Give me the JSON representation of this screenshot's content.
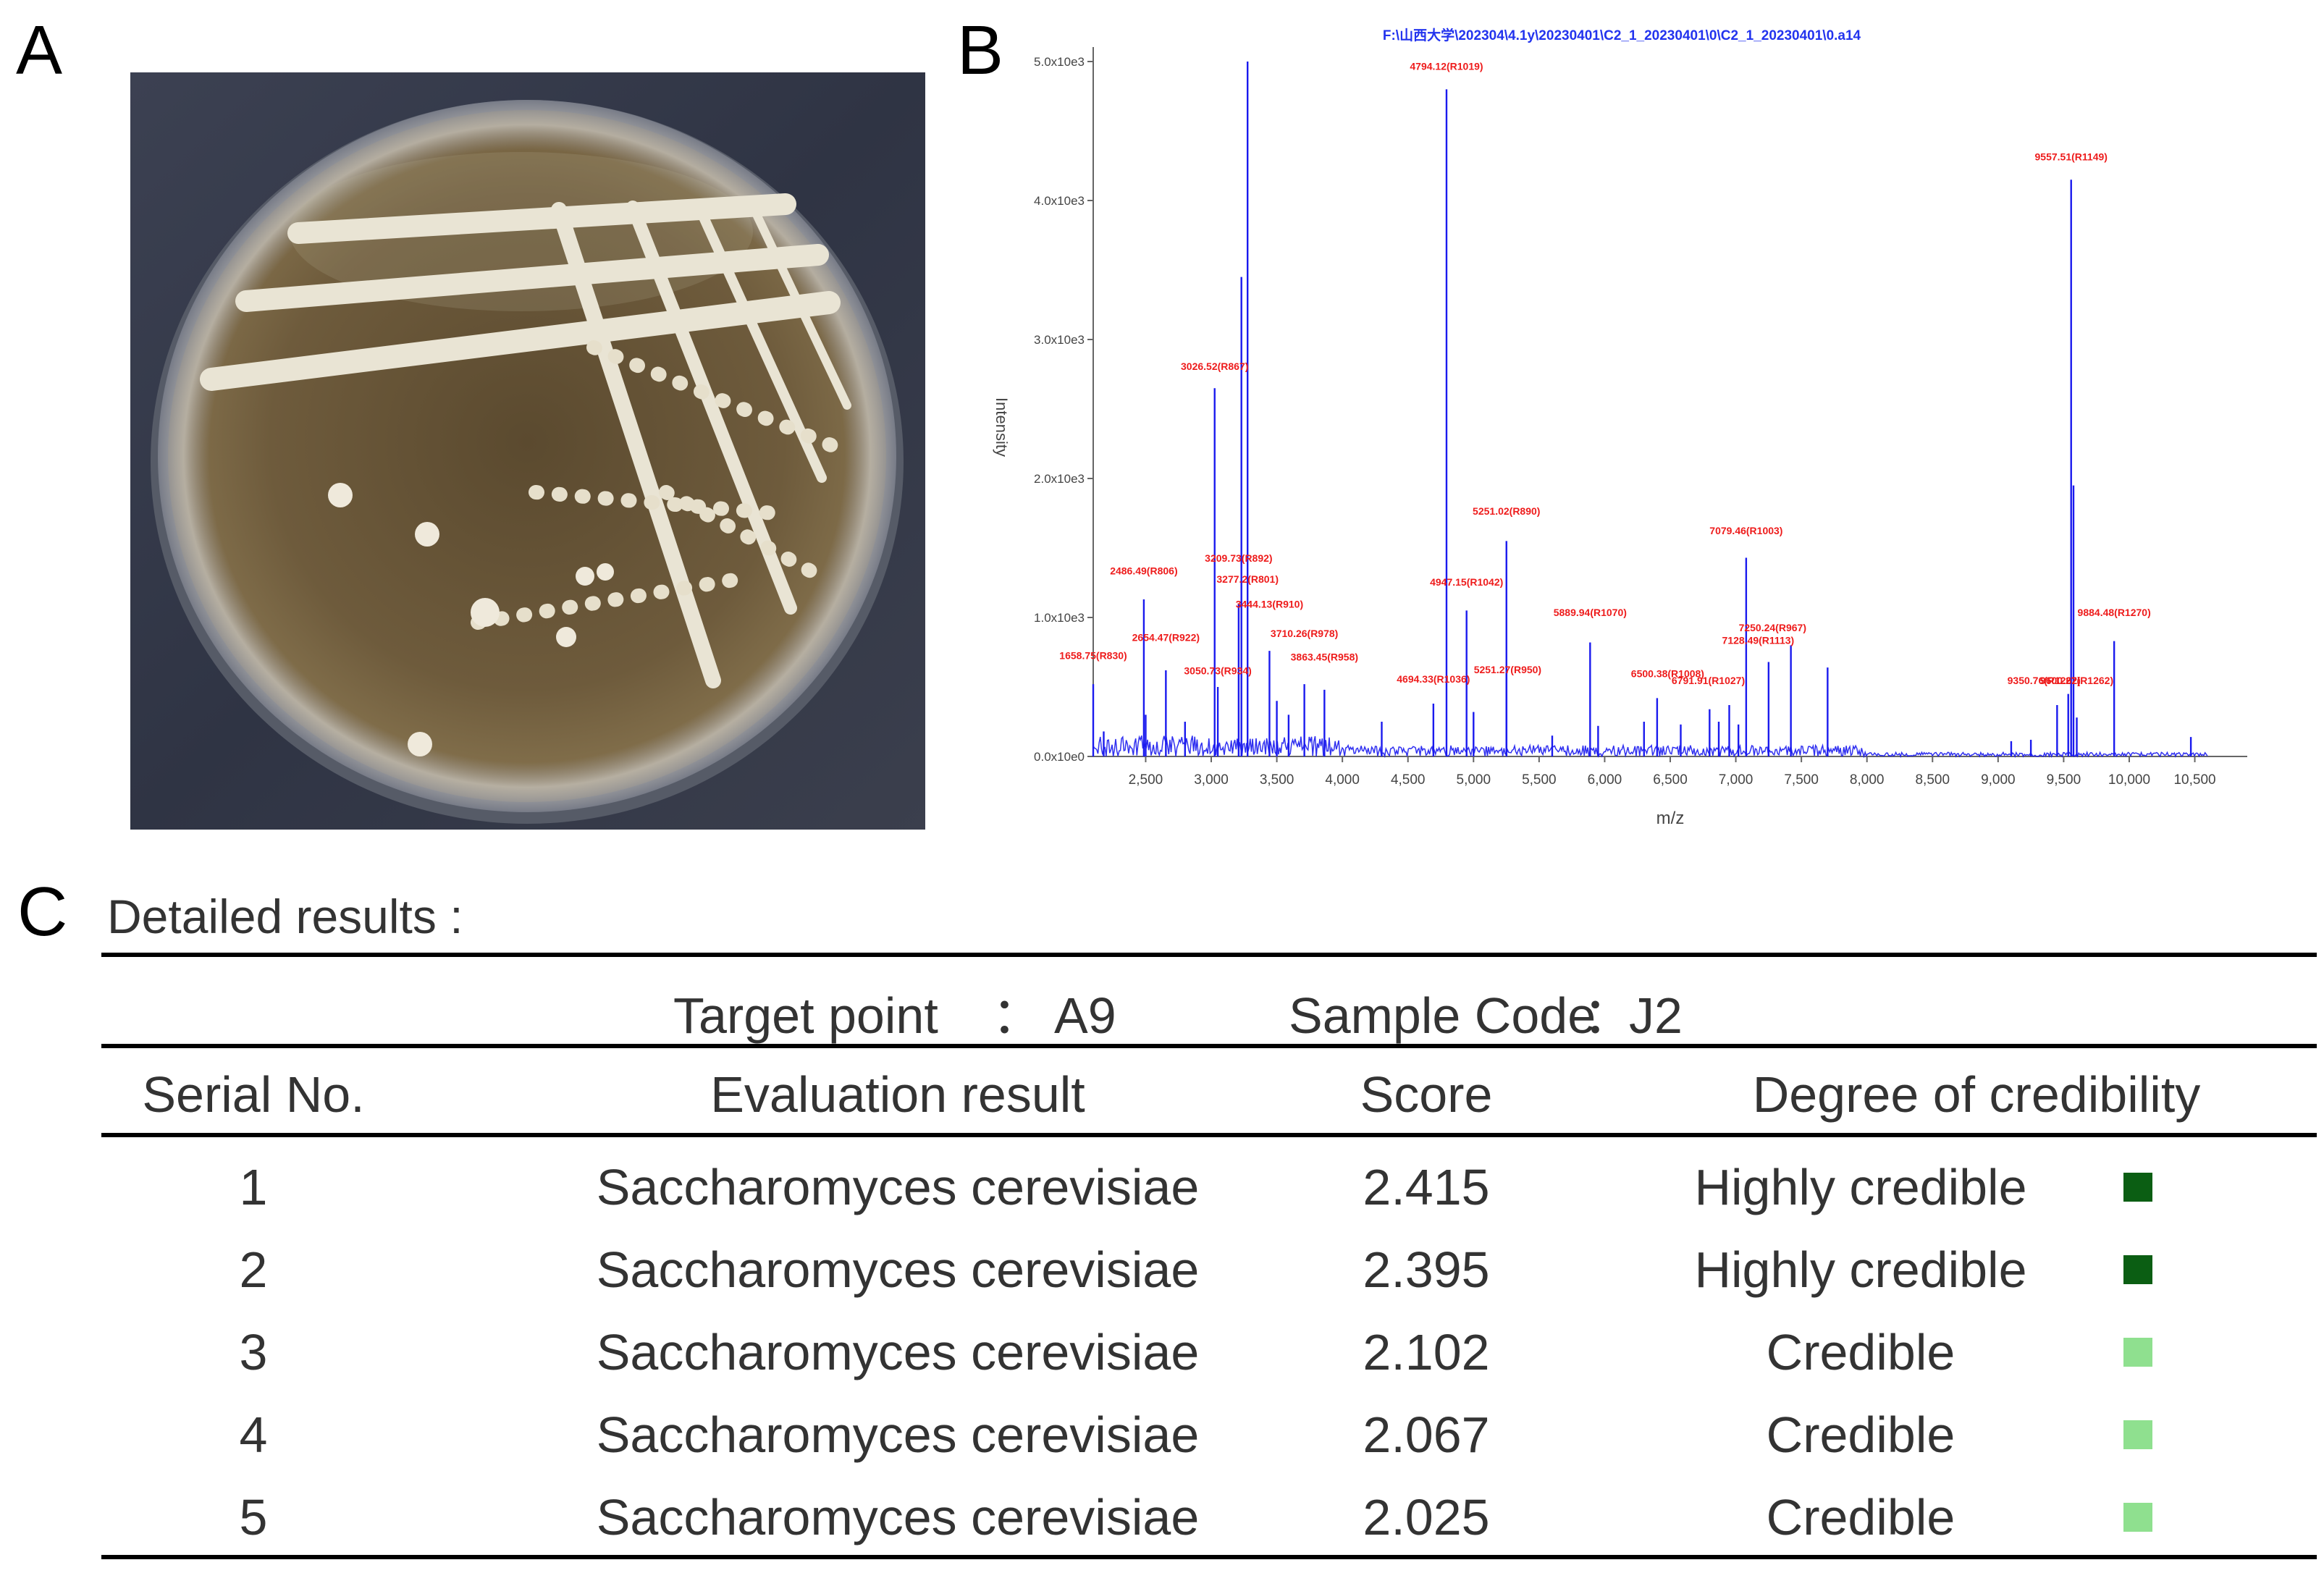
{
  "panel_labels": {
    "a": "A",
    "b": "B",
    "c": "C"
  },
  "chart_data": {
    "type": "bar",
    "title": "F:\\山西大学\\202304\\4.1y\\20230401\\C2_1_20230401\\0\\C2_1_20230401\\0.a14",
    "xlabel": "m/z",
    "ylabel": "Intensity",
    "xlim": [
      2100,
      10900
    ],
    "ylim": [
      0,
      5000
    ],
    "x_ticks": [
      "2,500",
      "3,000",
      "3,500",
      "4,000",
      "4,500",
      "5,000",
      "5,500",
      "6,000",
      "6,500",
      "7,000",
      "7,500",
      "8,000",
      "8,500",
      "9,000",
      "9,500",
      "10,000",
      "10,500"
    ],
    "x_tick_values": [
      2500,
      3000,
      3500,
      4000,
      4500,
      5000,
      5500,
      6000,
      6500,
      7000,
      7500,
      8000,
      8500,
      9000,
      9500,
      10000,
      10500
    ],
    "y_ticks": [
      "0.0x10e0",
      "1.0x10e3",
      "2.0x10e3",
      "3.0x10e3",
      "4.0x10e3",
      "5.0x10e3"
    ],
    "y_tick_values": [
      0,
      1000,
      2000,
      3000,
      4000,
      5000
    ],
    "peaks": [
      {
        "mz": 2100,
        "intensity": 520
      },
      {
        "mz": 2180,
        "intensity": 180
      },
      {
        "mz": 2486,
        "intensity": 1130
      },
      {
        "mz": 2500,
        "intensity": 300
      },
      {
        "mz": 2654,
        "intensity": 620
      },
      {
        "mz": 2800,
        "intensity": 250
      },
      {
        "mz": 3026,
        "intensity": 2650
      },
      {
        "mz": 3050,
        "intensity": 500
      },
      {
        "mz": 3209,
        "intensity": 1100
      },
      {
        "mz": 3230,
        "intensity": 3450
      },
      {
        "mz": 3277,
        "intensity": 5000
      },
      {
        "mz": 3444,
        "intensity": 760
      },
      {
        "mz": 3500,
        "intensity": 400
      },
      {
        "mz": 3590,
        "intensity": 300
      },
      {
        "mz": 3710,
        "intensity": 520
      },
      {
        "mz": 3863,
        "intensity": 480
      },
      {
        "mz": 4300,
        "intensity": 250
      },
      {
        "mz": 4694,
        "intensity": 380
      },
      {
        "mz": 4794,
        "intensity": 4800
      },
      {
        "mz": 4947,
        "intensity": 1050
      },
      {
        "mz": 5000,
        "intensity": 320
      },
      {
        "mz": 5251,
        "intensity": 1550
      },
      {
        "mz": 5251.5,
        "intensity": 600
      },
      {
        "mz": 5600,
        "intensity": 150
      },
      {
        "mz": 5889,
        "intensity": 820
      },
      {
        "mz": 5950,
        "intensity": 220
      },
      {
        "mz": 6300,
        "intensity": 250
      },
      {
        "mz": 6400,
        "intensity": 420
      },
      {
        "mz": 6580,
        "intensity": 230
      },
      {
        "mz": 6800,
        "intensity": 340
      },
      {
        "mz": 6870,
        "intensity": 250
      },
      {
        "mz": 6950,
        "intensity": 370
      },
      {
        "mz": 7020,
        "intensity": 230
      },
      {
        "mz": 7079,
        "intensity": 1430
      },
      {
        "mz": 7250,
        "intensity": 680
      },
      {
        "mz": 7420,
        "intensity": 800
      },
      {
        "mz": 7700,
        "intensity": 640
      },
      {
        "mz": 9100,
        "intensity": 110
      },
      {
        "mz": 9250,
        "intensity": 120
      },
      {
        "mz": 9450,
        "intensity": 370
      },
      {
        "mz": 9535,
        "intensity": 450
      },
      {
        "mz": 9557,
        "intensity": 4150
      },
      {
        "mz": 9575,
        "intensity": 1950
      },
      {
        "mz": 9600,
        "intensity": 280
      },
      {
        "mz": 9885,
        "intensity": 830
      },
      {
        "mz": 10470,
        "intensity": 140
      }
    ],
    "annotations": [
      {
        "text": "4794.12(R1019)",
        "mz": 4794,
        "intensity": 4940
      },
      {
        "text": "9557.51(R1149)",
        "mz": 9557,
        "intensity": 4290
      },
      {
        "text": "3026.52(R867)",
        "mz": 3026,
        "intensity": 2780
      },
      {
        "text": "5251.02(R890)",
        "mz": 5251,
        "intensity": 1740
      },
      {
        "text": "7079.46(R1003)",
        "mz": 7079,
        "intensity": 1600
      },
      {
        "text": "3209.73(R892)",
        "mz": 3209,
        "intensity": 1400
      },
      {
        "text": "2486.49(R806)",
        "mz": 2486,
        "intensity": 1310
      },
      {
        "text": "3277.2(R801)",
        "mz": 3277,
        "intensity": 1250
      },
      {
        "text": "4947.15(R1042)",
        "mz": 4947,
        "intensity": 1230
      },
      {
        "text": "3444.13(R910)",
        "mz": 3444,
        "intensity": 1070
      },
      {
        "text": "5889.94(R1070)",
        "mz": 5889,
        "intensity": 1010
      },
      {
        "text": "9884.48(R1270)",
        "mz": 9885,
        "intensity": 1010
      },
      {
        "text": "7250.24(R967)",
        "mz": 7280,
        "intensity": 900
      },
      {
        "text": "3710.26(R978)",
        "mz": 3710,
        "intensity": 860
      },
      {
        "text": "2654.47(R922)",
        "mz": 2654,
        "intensity": 830
      },
      {
        "text": "7128.49(R1113)",
        "mz": 7170,
        "intensity": 810
      },
      {
        "text": "1658.75(R830)",
        "mz": 2100,
        "intensity": 700
      },
      {
        "text": "3863.45(R958)",
        "mz": 3863,
        "intensity": 690
      },
      {
        "text": "3050.73(R934)",
        "mz": 3050,
        "intensity": 590
      },
      {
        "text": "5251.27(R950)",
        "mz": 5260,
        "intensity": 600
      },
      {
        "text": "6500.38(R1008)",
        "mz": 6480,
        "intensity": 570
      },
      {
        "text": "6791.91(R1027)",
        "mz": 6790,
        "intensity": 520
      },
      {
        "text": "4694.33(R1036)",
        "mz": 4694,
        "intensity": 530
      },
      {
        "text": "9350.76(R1262)",
        "mz": 9350,
        "intensity": 520
      },
      {
        "text": "9600.27(R1262)",
        "mz": 9600,
        "intensity": 520
      }
    ]
  },
  "results": {
    "heading": "Detailed results :",
    "target_label": "Target point",
    "target_sep": "：",
    "target_value": "A9",
    "sample_label": "Sample Code",
    "sample_sep": "：",
    "sample_value": "J2",
    "headers": {
      "serial": "Serial No.",
      "evaluation": "Evaluation result",
      "score": "Score",
      "degree": "Degree of credibility"
    },
    "rows": [
      {
        "serial": "1",
        "evaluation": "Saccharomyces cerevisiae",
        "score": "2.415",
        "degree": "Highly credible",
        "color": "#0b5e13"
      },
      {
        "serial": "2",
        "evaluation": "Saccharomyces cerevisiae",
        "score": "2.395",
        "degree": "Highly credible",
        "color": "#0b5e13"
      },
      {
        "serial": "3",
        "evaluation": "Saccharomyces cerevisiae",
        "score": "2.102",
        "degree": "Credible",
        "color": "#8fe08f"
      },
      {
        "serial": "4",
        "evaluation": "Saccharomyces cerevisiae",
        "score": "2.067",
        "degree": "Credible",
        "color": "#8fe08f"
      },
      {
        "serial": "5",
        "evaluation": "Saccharomyces cerevisiae",
        "score": "2.025",
        "degree": "Credible",
        "color": "#8fe08f"
      }
    ]
  }
}
